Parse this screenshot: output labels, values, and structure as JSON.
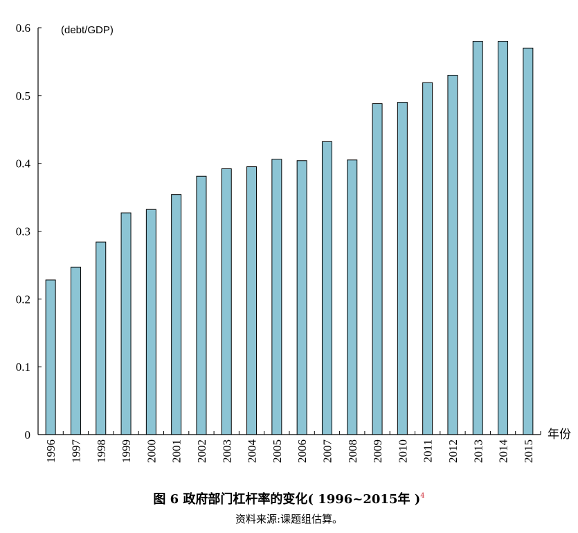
{
  "chart_data": {
    "type": "bar",
    "title": "图 6  政府部门杠杆率的变化( 1996~2015年 )",
    "title_note": "4",
    "source": "资料来源:课题组估算。",
    "ylabel": "(debt/GDP)",
    "xlabel": "年份",
    "ylim": [
      0,
      0.6
    ],
    "yticks": [
      "0",
      "0.1",
      "0.2",
      "0.3",
      "0.4",
      "0.5",
      "0.6"
    ],
    "grid": false,
    "bar_color": "#8cc4d4",
    "categories": [
      "1996",
      "1997",
      "1998",
      "1999",
      "2000",
      "2001",
      "2002",
      "2003",
      "2004",
      "2005",
      "2006",
      "2007",
      "2008",
      "2009",
      "2010",
      "2011",
      "2012",
      "2013",
      "2014",
      "2015"
    ],
    "values": [
      0.228,
      0.247,
      0.284,
      0.327,
      0.332,
      0.354,
      0.381,
      0.392,
      0.395,
      0.406,
      0.404,
      0.432,
      0.405,
      0.488,
      0.49,
      0.519,
      0.53,
      0.58,
      0.58,
      0.57
    ]
  }
}
